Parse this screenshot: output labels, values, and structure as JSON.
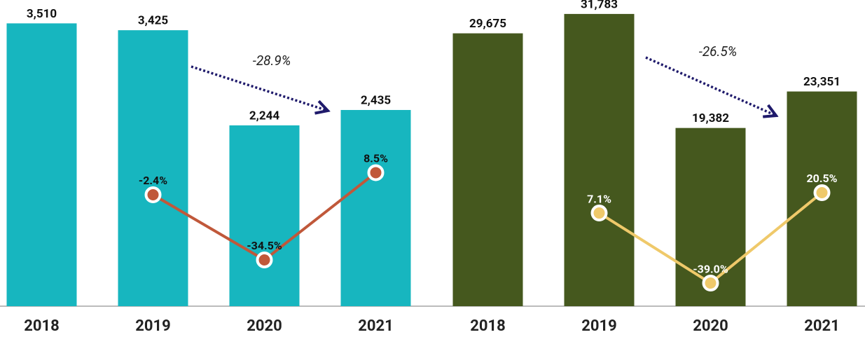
{
  "chart_data": [
    {
      "type": "bar",
      "categories": [
        "2018",
        "2019",
        "2020",
        "2021"
      ],
      "series": [
        {
          "color": "#17b6bf",
          "values": [
            3510,
            3425,
            2244,
            2435
          ],
          "value_labels": [
            "3,510",
            "3,425",
            "2,244",
            "2,435"
          ]
        },
        {
          "type": "line",
          "axis": "y2",
          "color": "#c0583a",
          "label_color": "#111111",
          "values": [
            null,
            -2.4,
            -34.5,
            8.5
          ],
          "value_labels": [
            null,
            "-2.4%",
            "-34.5%",
            "8.5%"
          ]
        }
      ],
      "ylim": [
        0,
        3800
      ],
      "y2lim": [
        -57.3,
        93.6
      ],
      "annotation": "-28.9%"
    },
    {
      "type": "bar",
      "categories": [
        "2018",
        "2019",
        "2020",
        "2021"
      ],
      "series": [
        {
          "color": "#45581e",
          "values": [
            29675,
            31783,
            19382,
            23351
          ],
          "value_labels": [
            "29,675",
            "31,783",
            "19,382",
            "23,351"
          ]
        },
        {
          "type": "line",
          "axis": "y2",
          "color": "#efc96a",
          "label_color": "#ffffff",
          "values": [
            null,
            7.1,
            -39.0,
            20.5
          ],
          "value_labels": [
            null,
            "7.1%",
            "-39.0%",
            "20.5%"
          ]
        }
      ],
      "ylim": [
        0,
        33300
      ],
      "y2lim": [
        -54.2,
        147.3
      ],
      "annotation": "-26.5%"
    }
  ]
}
